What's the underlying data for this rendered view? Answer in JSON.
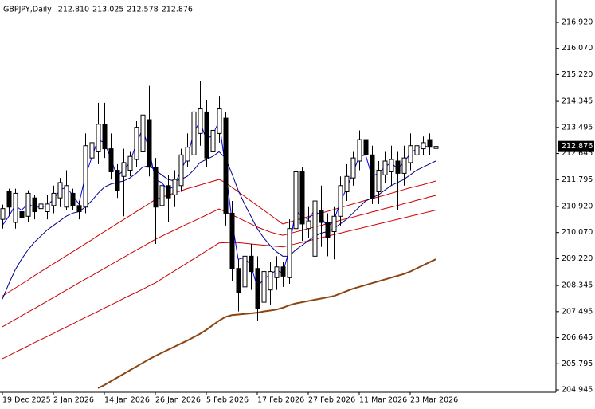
{
  "chart_data": {
    "type": "candlestick",
    "title": "GBPJPY,Daily",
    "ohlc_text": [
      "212.810",
      "213.025",
      "212.578",
      "212.876"
    ],
    "current_price": {
      "value": 212.876,
      "label": "212.876"
    },
    "categories": [
      "19 Dec 2025",
      null,
      null,
      null,
      null,
      null,
      null,
      null,
      "2 Jan 2026",
      null,
      null,
      null,
      null,
      null,
      null,
      null,
      "14 Jan 2026",
      null,
      null,
      null,
      null,
      null,
      null,
      null,
      "26 Jan 2026",
      null,
      null,
      null,
      null,
      null,
      null,
      null,
      "5 Feb 2026",
      null,
      null,
      null,
      null,
      null,
      null,
      null,
      "17 Feb 2026",
      null,
      null,
      null,
      null,
      null,
      null,
      null,
      "27 Feb 2026",
      null,
      null,
      null,
      null,
      null,
      null,
      null,
      "11 Mar 2026",
      null,
      null,
      null,
      null,
      null,
      null,
      null,
      "23 Mar 2026",
      null,
      null,
      null,
      null
    ],
    "open": [
      210.5,
      211.4,
      210.4,
      210.75,
      210.6,
      211.2,
      210.85,
      210.75,
      210.95,
      211.2,
      210.9,
      211.35,
      210.95,
      210.9,
      212.5,
      212.7,
      213.6,
      212.8,
      212.1,
      211.9,
      212.1,
      212.45,
      212.7,
      213.75,
      212.2,
      210.95,
      211.6,
      211.3,
      211.6,
      212.4,
      212.6,
      213.3,
      214.0,
      212.7,
      213.3,
      213.8,
      210.7,
      208.9,
      208.3,
      209.3,
      208.9,
      207.8,
      208.2,
      208.6,
      208.95,
      208.6,
      210.2,
      212.05,
      210.2,
      209.3,
      210.8,
      210.4,
      210.1,
      210.6,
      211.4,
      211.85,
      212.4,
      213.1,
      212.6,
      211.4,
      211.95,
      212.05,
      212.4,
      212.0,
      212.35,
      212.6,
      212.8,
      213.1,
      212.81
    ],
    "high": [
      210.98,
      211.5,
      211.5,
      210.9,
      211.45,
      211.3,
      211.2,
      211.3,
      211.6,
      211.85,
      212.1,
      211.5,
      211.1,
      213.3,
      213.6,
      214.3,
      214.3,
      213.3,
      212.3,
      212.8,
      212.7,
      213.7,
      214.0,
      214.85,
      212.5,
      211.9,
      211.95,
      212.1,
      212.8,
      213.3,
      214.1,
      215.0,
      214.4,
      213.7,
      214.5,
      214.0,
      211.1,
      209.2,
      209.6,
      209.7,
      209.3,
      209.7,
      209.1,
      209.3,
      209.1,
      210.5,
      212.4,
      212.2,
      210.9,
      211.3,
      211.6,
      210.7,
      210.9,
      211.9,
      212.3,
      212.7,
      213.4,
      213.3,
      212.9,
      212.4,
      212.7,
      212.9,
      212.7,
      212.9,
      213.3,
      213.1,
      213.2,
      213.3,
      213.025
    ],
    "low": [
      210.2,
      210.6,
      210.2,
      210.3,
      210.4,
      210.5,
      210.4,
      210.5,
      210.7,
      210.9,
      210.8,
      210.8,
      210.5,
      210.7,
      212.2,
      212.3,
      212.5,
      211.8,
      211.2,
      210.6,
      211.9,
      212.2,
      212.4,
      211.9,
      209.7,
      210.1,
      210.4,
      210.9,
      211.4,
      212.2,
      212.3,
      212.9,
      212.2,
      212.3,
      213.0,
      210.3,
      208.5,
      207.5,
      207.7,
      208.2,
      207.2,
      207.5,
      207.7,
      208.2,
      208.3,
      208.4,
      209.9,
      209.8,
      209.9,
      209.0,
      209.6,
      209.3,
      209.2,
      210.3,
      211.1,
      211.6,
      212.1,
      212.3,
      211.0,
      211.0,
      211.7,
      211.6,
      210.8,
      211.6,
      212.1,
      212.3,
      212.6,
      212.6,
      212.578
    ],
    "close": [
      210.85,
      210.9,
      211.35,
      210.55,
      211.35,
      210.75,
      211.0,
      211.0,
      211.35,
      211.7,
      211.6,
      210.95,
      210.75,
      212.9,
      213.0,
      213.6,
      212.8,
      212.05,
      211.45,
      212.35,
      212.55,
      213.5,
      213.9,
      212.2,
      210.9,
      211.6,
      211.2,
      211.8,
      212.6,
      212.85,
      214.0,
      214.1,
      212.5,
      213.4,
      214.1,
      210.7,
      208.9,
      208.1,
      209.3,
      208.8,
      207.6,
      208.8,
      208.8,
      208.95,
      208.65,
      210.2,
      212.05,
      210.35,
      210.45,
      211.1,
      210.4,
      209.9,
      210.6,
      211.6,
      211.9,
      212.5,
      213.1,
      212.6,
      211.2,
      212.1,
      212.4,
      212.45,
      212.0,
      212.5,
      212.9,
      212.9,
      213.0,
      212.85,
      212.876
    ],
    "up_color": "#ffffff",
    "down_color": "#000000",
    "moving_averages": [
      {
        "color": "#8b4513",
        "width": 2,
        "values": [
          null,
          null,
          null,
          null,
          null,
          null,
          null,
          null,
          null,
          null,
          null,
          null,
          null,
          null,
          null,
          205.0,
          205.1,
          205.22,
          205.34,
          205.46,
          205.58,
          205.7,
          205.82,
          205.94,
          206.05,
          206.15,
          206.25,
          206.35,
          206.45,
          206.55,
          206.66,
          206.77,
          206.9,
          207.05,
          207.2,
          207.32,
          207.38,
          207.4,
          207.42,
          207.44,
          207.46,
          207.5,
          207.53,
          207.56,
          207.62,
          207.7,
          207.76,
          207.8,
          207.84,
          207.88,
          207.92,
          207.96,
          208.0,
          208.08,
          208.16,
          208.24,
          208.3,
          208.36,
          208.42,
          208.48,
          208.54,
          208.6,
          208.66,
          208.72,
          208.8,
          208.9,
          209.0,
          209.1,
          209.2
        ]
      },
      {
        "color": "#cc0000",
        "width": 1,
        "values": [
          205.96,
          206.06,
          206.17,
          206.27,
          206.37,
          206.48,
          206.58,
          206.68,
          206.78,
          206.89,
          206.99,
          207.09,
          207.2,
          207.3,
          207.4,
          207.5,
          207.61,
          207.71,
          207.81,
          207.92,
          208.02,
          208.12,
          208.22,
          208.33,
          208.43,
          208.56,
          208.69,
          208.82,
          208.95,
          209.08,
          209.21,
          209.34,
          209.47,
          209.6,
          209.73,
          209.74,
          209.75,
          209.74,
          209.72,
          209.7,
          209.68,
          209.66,
          209.64,
          209.62,
          209.6,
          209.65,
          209.7,
          209.75,
          209.8,
          209.85,
          209.9,
          209.95,
          210.0,
          210.05,
          210.1,
          210.15,
          210.2,
          210.25,
          210.3,
          210.35,
          210.4,
          210.45,
          210.5,
          210.55,
          210.6,
          210.65,
          210.7,
          210.75,
          210.8
        ]
      },
      {
        "color": "#cc0000",
        "width": 1,
        "values": [
          207.0,
          207.12,
          207.24,
          207.36,
          207.48,
          207.59,
          207.71,
          207.83,
          207.95,
          208.07,
          208.19,
          208.31,
          208.43,
          208.55,
          208.66,
          208.78,
          208.9,
          209.02,
          209.14,
          209.26,
          209.38,
          209.5,
          209.61,
          209.73,
          209.85,
          209.95,
          210.05,
          210.15,
          210.25,
          210.35,
          210.44,
          210.54,
          210.64,
          210.74,
          210.84,
          210.75,
          210.65,
          210.55,
          210.45,
          210.35,
          210.25,
          210.17,
          210.09,
          210.03,
          209.98,
          210.03,
          210.09,
          210.14,
          210.2,
          210.25,
          210.3,
          210.36,
          210.41,
          210.47,
          210.52,
          210.57,
          210.63,
          210.68,
          210.74,
          210.79,
          210.85,
          210.9,
          210.95,
          211.01,
          211.06,
          211.12,
          211.17,
          211.23,
          211.28
        ]
      },
      {
        "color": "#cc0000",
        "width": 1,
        "values": [
          208.0,
          208.13,
          208.26,
          208.39,
          208.52,
          208.66,
          208.79,
          208.92,
          209.05,
          209.18,
          209.31,
          209.44,
          209.57,
          209.7,
          209.83,
          209.97,
          210.1,
          210.23,
          210.36,
          210.49,
          210.62,
          210.75,
          210.88,
          211.01,
          211.15,
          211.22,
          211.29,
          211.36,
          211.43,
          211.5,
          211.56,
          211.62,
          211.68,
          211.74,
          211.8,
          211.7,
          211.55,
          211.4,
          211.25,
          211.1,
          210.95,
          210.8,
          210.65,
          210.5,
          210.35,
          210.41,
          210.47,
          210.53,
          210.59,
          210.64,
          210.7,
          210.76,
          210.82,
          210.88,
          210.94,
          211.0,
          211.06,
          211.12,
          211.18,
          211.23,
          211.29,
          211.35,
          211.41,
          211.47,
          211.53,
          211.58,
          211.63,
          211.69,
          211.75
        ]
      },
      {
        "color": "#00008b",
        "width": 1,
        "values": [
          207.9,
          208.4,
          208.85,
          209.2,
          209.5,
          209.75,
          209.95,
          210.15,
          210.3,
          210.45,
          210.6,
          210.7,
          210.75,
          210.9,
          211.1,
          211.35,
          211.55,
          211.65,
          211.7,
          211.75,
          211.85,
          212.0,
          212.2,
          212.25,
          212.1,
          211.95,
          211.8,
          211.75,
          211.8,
          211.9,
          212.1,
          212.35,
          212.45,
          212.55,
          212.7,
          212.5,
          212.0,
          211.45,
          211.0,
          210.6,
          210.2,
          209.9,
          209.65,
          209.45,
          209.3,
          209.3,
          209.5,
          209.65,
          209.8,
          209.95,
          210.05,
          210.1,
          210.2,
          210.35,
          210.5,
          210.7,
          210.9,
          211.1,
          211.2,
          211.3,
          211.45,
          211.6,
          211.7,
          211.8,
          211.95,
          212.1,
          212.2,
          212.3,
          212.4
        ]
      },
      {
        "color": "#0000ff",
        "width": 1,
        "values": [
          210.3,
          210.6,
          210.95,
          210.8,
          211.0,
          210.9,
          210.9,
          210.95,
          211.15,
          211.45,
          211.55,
          211.3,
          211.0,
          211.9,
          212.5,
          213.1,
          213.0,
          212.5,
          211.9,
          212.1,
          212.35,
          212.95,
          213.45,
          212.8,
          211.8,
          211.7,
          211.45,
          211.6,
          212.1,
          212.5,
          213.3,
          213.7,
          213.1,
          213.25,
          213.7,
          212.2,
          210.5,
          209.2,
          209.25,
          209.0,
          208.3,
          208.55,
          208.7,
          208.85,
          208.75,
          209.5,
          210.8,
          210.6,
          210.5,
          210.8,
          210.6,
          210.25,
          210.45,
          211.05,
          211.5,
          212.0,
          212.55,
          212.6,
          211.9,
          212.0,
          212.2,
          212.35,
          212.15,
          212.35,
          212.65,
          212.8,
          212.9,
          212.85,
          212.86
        ]
      }
    ],
    "ylim": [
      204.867,
      217.647
    ],
    "yticks": [
      {
        "value": 204.945,
        "label": "204.945"
      },
      {
        "value": 205.795,
        "label": "205.795"
      },
      {
        "value": 206.645,
        "label": "206.645"
      },
      {
        "value": 207.495,
        "label": "207.495"
      },
      {
        "value": 208.345,
        "label": "208.345"
      },
      {
        "value": 209.22,
        "label": "209.220"
      },
      {
        "value": 210.07,
        "label": "210.070"
      },
      {
        "value": 210.92,
        "label": "210.920"
      },
      {
        "value": 211.795,
        "label": "211.795"
      },
      {
        "value": 212.645,
        "label": "212.645"
      },
      {
        "value": 213.495,
        "label": "213.495"
      },
      {
        "value": 214.345,
        "label": "214.345"
      },
      {
        "value": 215.22,
        "label": "215.220"
      },
      {
        "value": 216.07,
        "label": "216.070"
      },
      {
        "value": 216.92,
        "label": "216.920"
      }
    ],
    "grid": false
  }
}
